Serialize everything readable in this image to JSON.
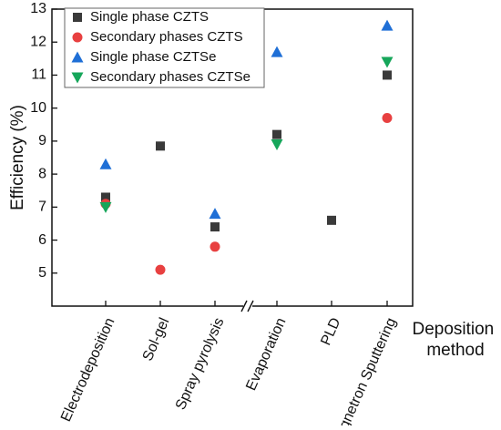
{
  "chart_data": {
    "type": "scatter",
    "ylabel": "Efficiency (%)",
    "xlabel_lines": [
      "Deposition",
      "method"
    ],
    "categories": [
      "Electrodeposition",
      "Sol-gel",
      "Spray pyrolysis",
      "Evaporation",
      "PLD",
      "Magnetron Sputtering"
    ],
    "axis_break_after": "Spray pyrolysis",
    "ylim": [
      4,
      13
    ],
    "yticks": [
      5,
      6,
      7,
      8,
      9,
      10,
      11,
      12,
      13
    ],
    "grid": false,
    "legend_position": "top-left",
    "series": [
      {
        "name": "Single phase CZTS",
        "marker": "square",
        "color": "#3a3a3a",
        "values": [
          7.3,
          8.85,
          6.4,
          9.2,
          6.6,
          11.0
        ]
      },
      {
        "name": "Secondary phases CZTS",
        "marker": "circle",
        "color": "#e84040",
        "values": [
          7.1,
          5.1,
          5.8,
          null,
          null,
          9.7
        ]
      },
      {
        "name": "Single phase CZTSe",
        "marker": "triangle-up",
        "color": "#1f6fd6",
        "values": [
          8.3,
          null,
          6.8,
          11.7,
          null,
          12.5
        ]
      },
      {
        "name": "Secondary phases CZTSe",
        "marker": "triangle-down",
        "color": "#16a65a",
        "values": [
          7.0,
          null,
          null,
          8.9,
          null,
          11.4
        ]
      }
    ]
  }
}
